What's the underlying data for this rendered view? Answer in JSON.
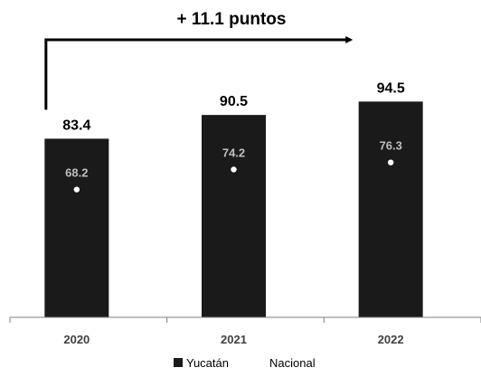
{
  "chart_data": {
    "type": "bar",
    "categories": [
      "2020",
      "2021",
      "2022"
    ],
    "series": [
      {
        "name": "Yucatán",
        "values": [
          83.4,
          90.5,
          94.5
        ],
        "labels": [
          "83.4",
          "90.5",
          "94.5"
        ],
        "color": "#1a1a1a"
      },
      {
        "name": "Nacional",
        "values": [
          68.2,
          74.2,
          76.3
        ],
        "labels": [
          "68.2",
          "74.2",
          "76.3"
        ],
        "color": "#ffffff",
        "marker": "dot"
      }
    ],
    "ylim": [
      30,
      100
    ],
    "annotation": {
      "text": "+ 11.1 puntos",
      "from": "2020",
      "to": "2022"
    },
    "legend_position": "bottom-center",
    "grid": false
  }
}
